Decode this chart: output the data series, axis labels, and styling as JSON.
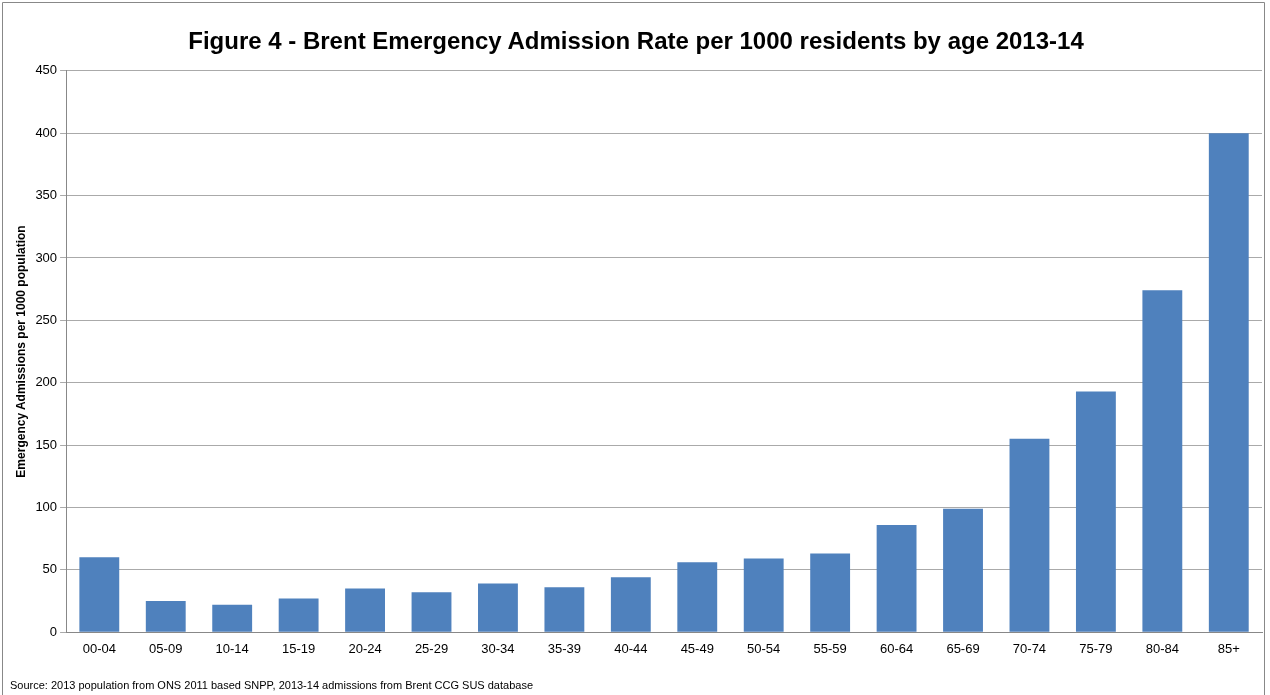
{
  "chart_data": {
    "type": "bar",
    "title": "Figure 4 - Brent Emergency Admission Rate per 1000 residents by age 2013-14",
    "ylabel": "Emergency Admissions per 1000 population",
    "categories": [
      "00-04",
      "05-09",
      "10-14",
      "15-19",
      "20-24",
      "25-29",
      "30-34",
      "35-39",
      "40-44",
      "45-49",
      "50-54",
      "55-59",
      "60-64",
      "65-69",
      "70-74",
      "75-79",
      "80-84",
      "85+"
    ],
    "values": [
      60,
      25,
      22,
      27,
      35,
      32,
      39,
      36,
      44,
      56,
      59,
      63,
      86,
      99,
      155,
      193,
      274,
      400
    ],
    "color": "#4f81bd",
    "ylim": [
      0,
      450
    ],
    "yticks": [
      0,
      50,
      100,
      150,
      200,
      250,
      300,
      350,
      400,
      450
    ],
    "grid": "y",
    "annotations": [
      "Source: 2013 population from ONS 2011 based SNPP, 2013-14 admissions from Brent CCG SUS database"
    ]
  }
}
